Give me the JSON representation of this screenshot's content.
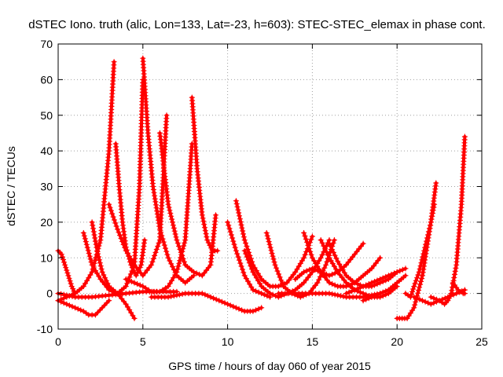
{
  "chart_data": {
    "type": "line",
    "title": "dSTEC Iono. truth (alic, Lon=133, Lat=-23, h=603): STEC-STEC_elemax in phase cont.",
    "xlabel": "GPS time / hours of day 060 of year 2015",
    "ylabel": "dSTEC  / TECUs",
    "xlim": [
      0,
      25
    ],
    "ylim": [
      -10,
      70
    ],
    "xticks": [
      0,
      5,
      10,
      15,
      20,
      25
    ],
    "yticks": [
      -10,
      0,
      10,
      20,
      30,
      40,
      50,
      60,
      70
    ],
    "grid": true,
    "marker": "+",
    "color": "#ff0000",
    "series": [
      {
        "x": [
          0.0,
          0.5,
          1.0,
          1.5,
          2.0,
          2.5,
          3.0,
          3.3
        ],
        "y": [
          -2,
          -1,
          0,
          2,
          6,
          15,
          40,
          65
        ]
      },
      {
        "x": [
          0.0,
          0.2,
          0.4,
          0.6,
          0.8,
          1.0
        ],
        "y": [
          12,
          11,
          8,
          5,
          2,
          0
        ]
      },
      {
        "x": [
          0.0,
          1.0,
          2.0,
          3.0,
          4.0,
          5.0,
          6.0,
          7.0
        ],
        "y": [
          0,
          -1,
          -1,
          -0.5,
          0,
          0.5,
          0.5,
          0.5
        ]
      },
      {
        "x": [
          0.0,
          0.5,
          1.0,
          1.5,
          1.8,
          2.2,
          2.6,
          3.0
        ],
        "y": [
          -2,
          -3,
          -4,
          -5,
          -6,
          -6,
          -4,
          -2
        ]
      },
      {
        "x": [
          1.5,
          2.0,
          2.5,
          3.0,
          3.5,
          4.0,
          4.5,
          4.8,
          5.0
        ],
        "y": [
          17,
          8,
          4,
          1,
          0,
          2,
          8,
          30,
          60
        ]
      },
      {
        "x": [
          2.0,
          2.3,
          2.6,
          3.0,
          3.5,
          4.0,
          4.5
        ],
        "y": [
          20,
          12,
          6,
          2,
          0,
          -3,
          -7
        ]
      },
      {
        "x": [
          3.4,
          3.6,
          3.8,
          4.0,
          4.3,
          4.6,
          4.9,
          5.1
        ],
        "y": [
          42,
          30,
          20,
          13,
          8,
          5,
          8,
          15
        ]
      },
      {
        "x": [
          5.0,
          5.3,
          5.6,
          6.0,
          6.5,
          7.0,
          7.5,
          8.0
        ],
        "y": [
          66,
          45,
          30,
          18,
          10,
          5,
          3,
          5
        ]
      },
      {
        "x": [
          3.0,
          3.5,
          4.0,
          4.5,
          5.0,
          5.5,
          6.0,
          6.4
        ],
        "y": [
          25,
          18,
          12,
          8,
          5,
          8,
          15,
          50
        ]
      },
      {
        "x": [
          4.0,
          5.0,
          5.5,
          6.0,
          6.5,
          7.0,
          7.5,
          7.9
        ],
        "y": [
          4,
          2,
          0.5,
          0.5,
          2,
          6,
          15,
          42
        ]
      },
      {
        "x": [
          6.0,
          6.5,
          7.0,
          7.5,
          8.0,
          8.5,
          9.0,
          9.3
        ],
        "y": [
          45,
          25,
          15,
          8,
          6,
          5,
          8,
          22
        ]
      },
      {
        "x": [
          7.9,
          8.2,
          8.5,
          8.8,
          9.1,
          9.4
        ],
        "y": [
          55,
          35,
          22,
          15,
          12,
          12
        ]
      },
      {
        "x": [
          5.5,
          6.5,
          7.5,
          8.5,
          9.5,
          10.0,
          10.5,
          11.0,
          11.5,
          12.0
        ],
        "y": [
          -1,
          -1,
          0,
          0,
          -2,
          -3,
          -4,
          -5,
          -5,
          -4
        ]
      },
      {
        "x": [
          10.0,
          10.5,
          11.0,
          11.5,
          12.0,
          12.5
        ],
        "y": [
          20,
          12,
          5,
          1,
          0,
          -1
        ]
      },
      {
        "x": [
          10.5,
          11.0,
          11.5,
          12.0,
          12.5,
          13.0,
          13.5,
          14.0,
          14.5,
          15.0
        ],
        "y": [
          26,
          15,
          8,
          4,
          2,
          2,
          3,
          6,
          10,
          16
        ]
      },
      {
        "x": [
          11.0,
          11.5,
          12.0,
          12.5,
          13.0,
          13.5,
          14.0,
          14.5,
          15.0,
          15.5,
          16.0
        ],
        "y": [
          12,
          6,
          2,
          0,
          -1,
          0,
          1,
          3,
          6,
          10,
          15
        ]
      },
      {
        "x": [
          12.3,
          12.8,
          13.3,
          13.8,
          14.3,
          14.8,
          15.3,
          15.8,
          16.3
        ],
        "y": [
          17,
          8,
          2,
          0,
          -1,
          0,
          3,
          8,
          15
        ]
      },
      {
        "x": [
          13.0,
          14.0,
          15.0,
          16.0,
          17.0,
          18.0,
          19.0
        ],
        "y": [
          0,
          0,
          0,
          0,
          -1,
          -1,
          0
        ]
      },
      {
        "x": [
          14.0,
          14.5,
          15.0,
          15.5,
          16.0,
          16.5,
          17.0,
          17.5,
          18.0
        ],
        "y": [
          4,
          6,
          7,
          6,
          5,
          6,
          8,
          11,
          14
        ]
      },
      {
        "x": [
          14.5,
          15.0,
          15.5,
          16.0,
          16.5,
          17.0,
          17.5,
          18.0,
          18.5,
          19.0
        ],
        "y": [
          17,
          10,
          6,
          3,
          2,
          2,
          3,
          5,
          7,
          10
        ]
      },
      {
        "x": [
          15.5,
          16.0,
          16.5,
          17.0,
          17.5,
          18.0,
          18.5,
          19.0,
          19.5,
          20.0
        ],
        "y": [
          15,
          10,
          6,
          3,
          1,
          0,
          -1,
          -1,
          0,
          2
        ]
      },
      {
        "x": [
          16.0,
          16.5,
          17.0,
          17.5,
          18.0,
          18.5,
          19.0,
          19.5,
          20.0
        ],
        "y": [
          14,
          9,
          5,
          3,
          2,
          2,
          3,
          4,
          6
        ]
      },
      {
        "x": [
          17.0,
          17.5,
          18.0,
          18.5,
          19.0,
          19.5,
          20.0,
          20.5
        ],
        "y": [
          0,
          1,
          2,
          3,
          4,
          5,
          6,
          7
        ]
      },
      {
        "x": [
          18.0,
          18.5,
          19.0,
          19.5,
          20.0,
          20.5
        ],
        "y": [
          -2,
          -1,
          0,
          1,
          3,
          5
        ]
      },
      {
        "x": [
          20.0,
          20.3,
          20.6,
          21.0,
          21.5,
          22.0,
          22.3
        ],
        "y": [
          -7,
          -7,
          -7,
          -4,
          5,
          20,
          31
        ]
      },
      {
        "x": [
          20.5,
          20.8,
          21.0,
          21.3,
          21.6,
          22.0,
          22.2
        ],
        "y": [
          0,
          -1,
          2,
          6,
          12,
          20,
          25
        ]
      },
      {
        "x": [
          21.0,
          21.5,
          22.0,
          22.5,
          23.0,
          23.5,
          24.0
        ],
        "y": [
          -1,
          -2,
          -3,
          -2,
          -1,
          0,
          1
        ]
      },
      {
        "x": [
          22.0,
          22.5,
          22.8,
          23.0,
          23.2,
          23.5,
          23.8,
          24.0
        ],
        "y": [
          -1,
          -2,
          -3,
          -2,
          0,
          8,
          25,
          44
        ]
      },
      {
        "x": [
          23.3,
          23.6,
          23.9,
          24.0
        ],
        "y": [
          3,
          1,
          0,
          0
        ]
      }
    ]
  }
}
